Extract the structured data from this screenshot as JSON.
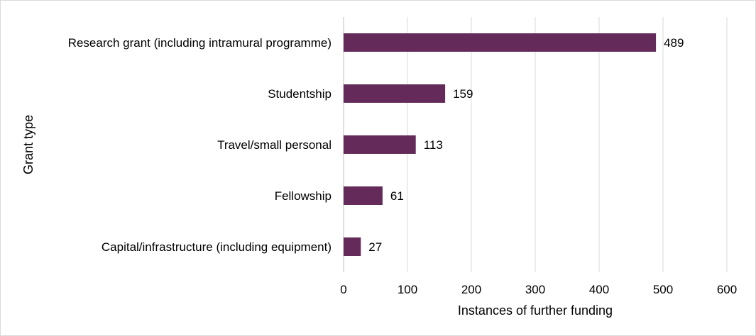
{
  "chart_data": {
    "type": "bar",
    "orientation": "horizontal",
    "categories": [
      "Research grant (including intramural programme)",
      "Studentship",
      "Travel/small personal",
      "Fellowship",
      "Capital/infrastructure (including equipment)"
    ],
    "values": [
      489,
      159,
      113,
      61,
      27
    ],
    "xlabel": "Instances of further funding",
    "ylabel": "Grant type",
    "xlim": [
      0,
      600
    ],
    "xticks": [
      0,
      100,
      200,
      300,
      400,
      500,
      600
    ],
    "grid": "vertical",
    "bar_color": "#632a5a",
    "data_labels": true
  }
}
